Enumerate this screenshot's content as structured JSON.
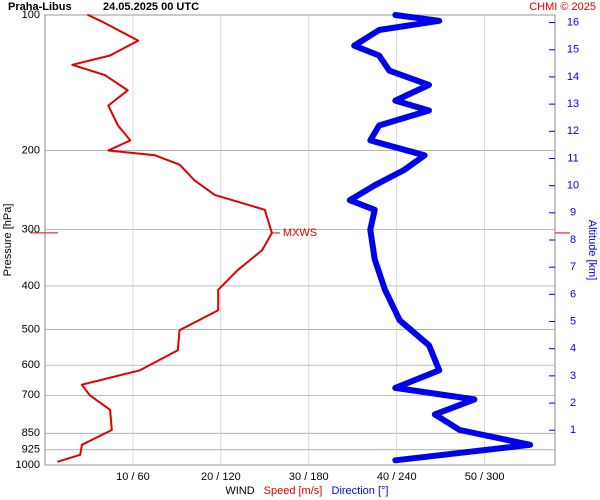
{
  "chart_data": {
    "type": "wind-profile",
    "station": "Praha-Libus",
    "title": "24.05.2025 00 UTC",
    "credit": "CHMI © 2025",
    "ylabel": "Pressure [hPa]",
    "y2label": "Altitude [km]",
    "xlabel": "WIND",
    "xlabel_speed": "Speed [m/s]",
    "xlabel_direction": "Direction [°]",
    "y_log": true,
    "y_inverted": true,
    "grid": true,
    "ylim": [
      100,
      1000
    ],
    "yticks": [
      100,
      200,
      300,
      400,
      500,
      600,
      700,
      850,
      925,
      1000
    ],
    "y2lim": [
      -0.28,
      16.28
    ],
    "y2ticks": [
      1,
      2,
      3,
      4,
      5,
      6,
      7,
      8,
      9,
      10,
      11,
      12,
      13,
      14,
      15,
      16
    ],
    "xlim": [
      0,
      58
    ],
    "x2lim": [
      0,
      348
    ],
    "xticks": [
      {
        "value": 10,
        "label": "10 / 60"
      },
      {
        "value": 20,
        "label": "20 / 120"
      },
      {
        "value": 30,
        "label": "30 / 180"
      },
      {
        "value": 40,
        "label": "40 / 240"
      },
      {
        "value": 50,
        "label": "50 / 300"
      }
    ],
    "max_wind": {
      "label": "MXWS",
      "pressure": 305,
      "speed": 25.8
    },
    "series": [
      {
        "name": "Speed [m/s]",
        "color": "#e00000",
        "axis": "x",
        "pressure": [
          100,
          103,
          114,
          123,
          129,
          136,
          147,
          159,
          176,
          190,
          200,
          205,
          215,
          233,
          251,
          271,
          305,
          333,
          369,
          408,
          453,
          502,
          556,
          616,
          663,
          700,
          754,
          836,
          902,
          949,
          983
        ],
        "values": [
          4.9,
          6.3,
          10.6,
          7.4,
          3.1,
          6.8,
          9.4,
          7.2,
          8.3,
          9.7,
          7.2,
          12.5,
          15.3,
          17.0,
          19.3,
          25.0,
          25.8,
          24.7,
          21.9,
          19.7,
          19.7,
          15.3,
          15.1,
          10.8,
          4.2,
          5.1,
          7.4,
          7.6,
          4.2,
          4.0,
          1.5
        ]
      },
      {
        "name": "Direction [°]",
        "color": "#0000ee",
        "axis": "x2",
        "pressure": [
          100,
          103,
          108,
          117,
          123,
          133,
          143,
          155,
          163,
          176,
          190,
          205,
          221,
          239,
          258,
          271,
          300,
          349,
          408,
          477,
          542,
          616,
          674,
          715,
          772,
          836,
          902,
          976
        ],
        "values": [
          239,
          269,
          228,
          211,
          228,
          235,
          262,
          239,
          262,
          228,
          222,
          259,
          245,
          225,
          208,
          225,
          222,
          225,
          232,
          242,
          262,
          269,
          239,
          293,
          266,
          283,
          331,
          239
        ]
      }
    ]
  }
}
